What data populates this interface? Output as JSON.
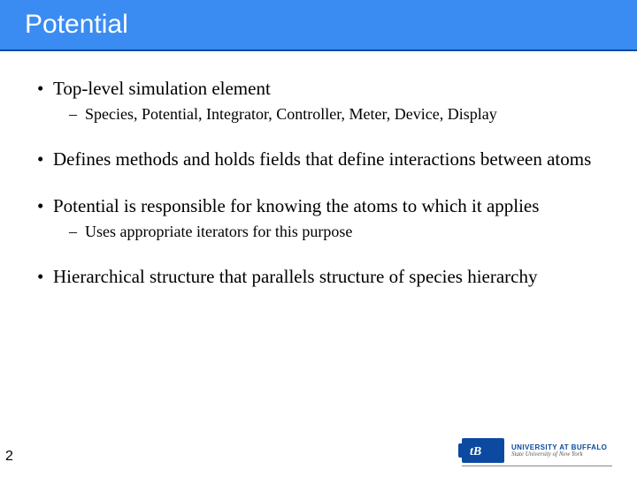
{
  "title": "Potential",
  "pageNumber": "2",
  "bullets": [
    {
      "level": 1,
      "text": "Top-level simulation element",
      "sub": [
        {
          "text": "Species, Potential, Integrator, Controller, Meter, Device, Display"
        }
      ]
    },
    {
      "level": 1,
      "text": "Defines methods and holds fields that define interactions between atoms",
      "sub": []
    },
    {
      "level": 1,
      "text": "Potential is responsible for knowing the atoms to which it applies",
      "sub": [
        {
          "text": "Uses appropriate iterators for this purpose"
        }
      ]
    },
    {
      "level": 1,
      "text": "Hierarchical structure that parallels structure of species hierarchy",
      "sub": []
    }
  ],
  "logo": {
    "glyph": "ⓘ",
    "line1": "UNIVERSITY AT BUFFALO",
    "line2": "State University of New York"
  },
  "colors": {
    "titleBg": "#3b8cf2",
    "titleBorder": "#0b4aa0",
    "titleText": "#ffffff",
    "bodyText": "#000000",
    "logoBlue": "#0b4aa0"
  }
}
